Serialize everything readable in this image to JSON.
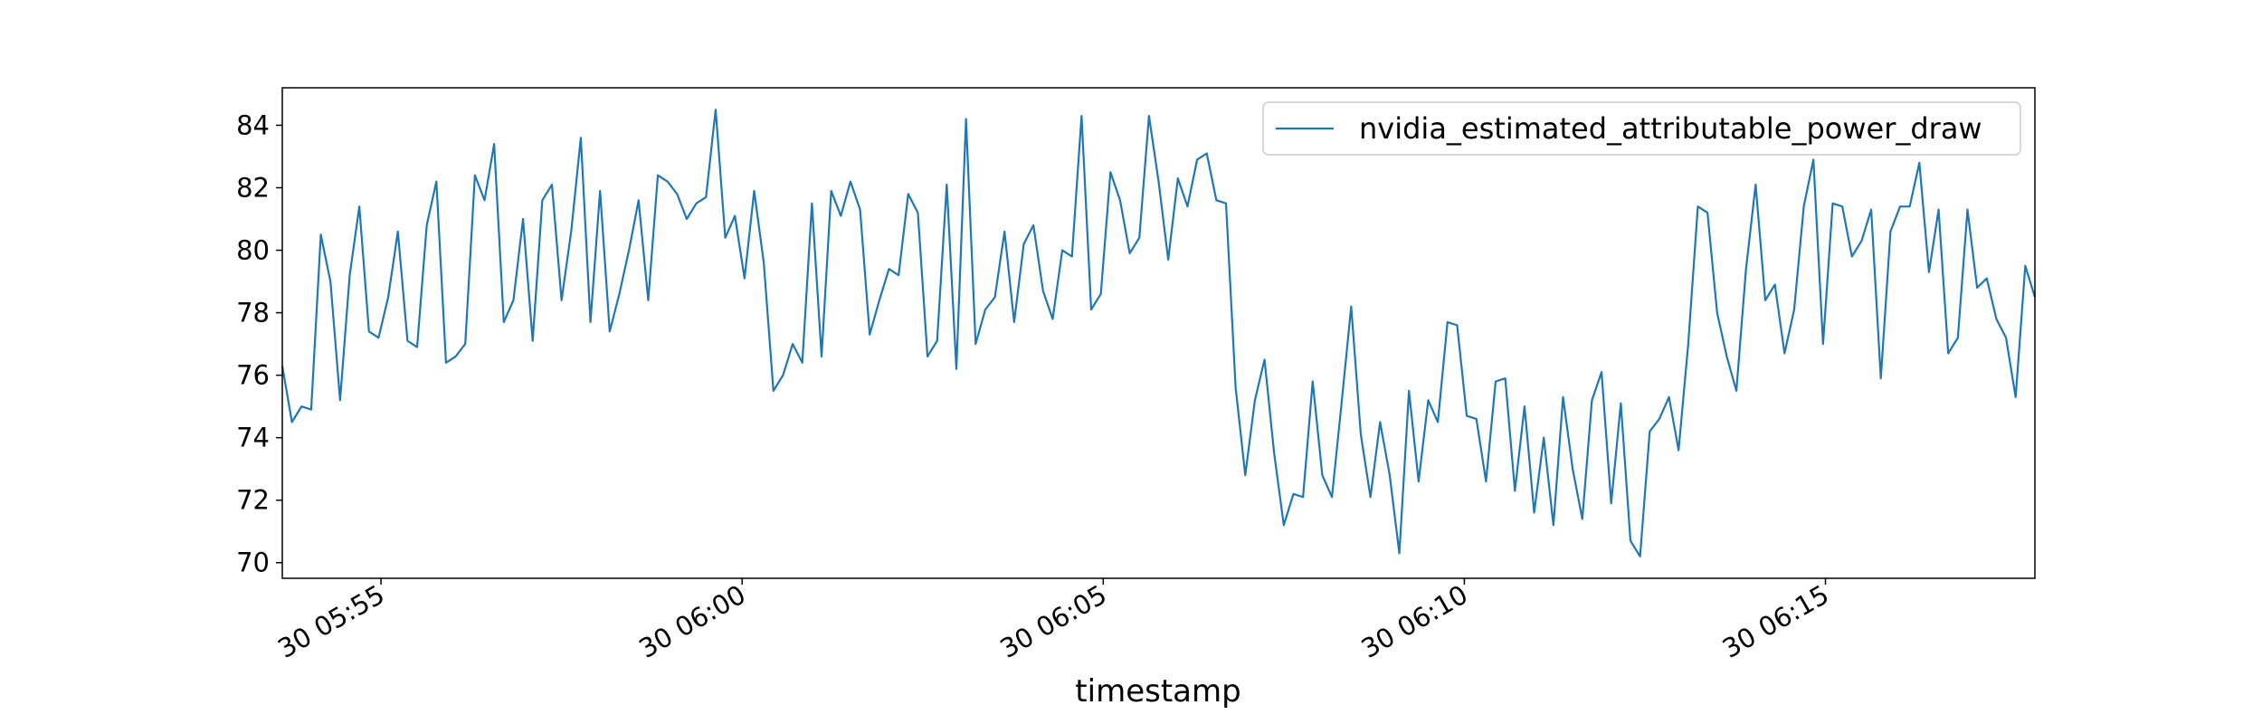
{
  "chart_data": {
    "type": "line",
    "x_label": "timestamp",
    "legend": "upper right",
    "x": [
      "30 05:53:38",
      "30 05:53:46",
      "30 05:53:54",
      "30 05:54:02",
      "30 05:54:10",
      "30 05:54:18",
      "30 05:54:26",
      "30 05:54:34",
      "30 05:54:42",
      "30 05:54:50",
      "30 05:54:58",
      "30 05:55:06",
      "30 05:55:14",
      "30 05:55:22",
      "30 05:55:30",
      "30 05:55:38",
      "30 05:55:46",
      "30 05:55:54",
      "30 05:56:02",
      "30 05:56:10",
      "30 05:56:18",
      "30 05:56:26",
      "30 05:56:34",
      "30 05:56:42",
      "30 05:56:50",
      "30 05:56:58",
      "30 05:57:06",
      "30 05:57:14",
      "30 05:57:22",
      "30 05:57:30",
      "30 05:57:38",
      "30 05:57:46",
      "30 05:57:54",
      "30 05:58:02",
      "30 05:58:10",
      "30 05:58:18",
      "30 05:58:26",
      "30 05:58:34",
      "30 05:58:42",
      "30 05:58:50",
      "30 05:58:58",
      "30 05:59:06",
      "30 05:59:14",
      "30 05:59:22",
      "30 05:59:30",
      "30 05:59:38",
      "30 05:59:46",
      "30 05:59:54",
      "30 06:00:02",
      "30 06:00:10",
      "30 06:00:18",
      "30 06:00:26",
      "30 06:00:34",
      "30 06:00:42",
      "30 06:00:50",
      "30 06:00:58",
      "30 06:01:06",
      "30 06:01:14",
      "30 06:01:22",
      "30 06:01:30",
      "30 06:01:38",
      "30 06:01:46",
      "30 06:01:54",
      "30 06:02:02",
      "30 06:02:10",
      "30 06:02:18",
      "30 06:02:26",
      "30 06:02:34",
      "30 06:02:42",
      "30 06:02:50",
      "30 06:02:58",
      "30 06:03:06",
      "30 06:03:14",
      "30 06:03:22",
      "30 06:03:30",
      "30 06:03:38",
      "30 06:03:46",
      "30 06:03:54",
      "30 06:04:02",
      "30 06:04:10",
      "30 06:04:18",
      "30 06:04:26",
      "30 06:04:34",
      "30 06:04:42",
      "30 06:04:50",
      "30 06:04:58",
      "30 06:05:06",
      "30 06:05:14",
      "30 06:05:22",
      "30 06:05:30",
      "30 06:05:38",
      "30 06:05:46",
      "30 06:05:54",
      "30 06:06:02",
      "30 06:06:10",
      "30 06:06:18",
      "30 06:06:26",
      "30 06:06:34",
      "30 06:06:42",
      "30 06:06:50",
      "30 06:06:58",
      "30 06:07:06",
      "30 06:07:14",
      "30 06:07:22",
      "30 06:07:30",
      "30 06:07:38",
      "30 06:07:46",
      "30 06:07:54",
      "30 06:08:02",
      "30 06:08:10",
      "30 06:08:18",
      "30 06:08:26",
      "30 06:08:34",
      "30 06:08:42",
      "30 06:08:50",
      "30 06:08:58",
      "30 06:09:06",
      "30 06:09:14",
      "30 06:09:22",
      "30 06:09:30",
      "30 06:09:38",
      "30 06:09:46",
      "30 06:09:54",
      "30 06:10:02",
      "30 06:10:10",
      "30 06:10:18",
      "30 06:10:26",
      "30 06:10:34",
      "30 06:10:42",
      "30 06:10:50",
      "30 06:10:58",
      "30 06:11:06",
      "30 06:11:14",
      "30 06:11:22",
      "30 06:11:30",
      "30 06:11:38",
      "30 06:11:46",
      "30 06:11:54",
      "30 06:12:02",
      "30 06:12:10",
      "30 06:12:18",
      "30 06:12:26",
      "30 06:12:34",
      "30 06:12:42",
      "30 06:12:50",
      "30 06:12:58",
      "30 06:13:06",
      "30 06:13:14",
      "30 06:13:22",
      "30 06:13:30",
      "30 06:13:38",
      "30 06:13:46",
      "30 06:13:54",
      "30 06:14:02",
      "30 06:14:10",
      "30 06:14:18",
      "30 06:14:26",
      "30 06:14:34",
      "30 06:14:42",
      "30 06:14:50",
      "30 06:14:58",
      "30 06:15:06",
      "30 06:15:14",
      "30 06:15:22",
      "30 06:15:30",
      "30 06:15:38",
      "30 06:15:46",
      "30 06:15:54",
      "30 06:16:02",
      "30 06:16:10",
      "30 06:16:18",
      "30 06:16:26",
      "30 06:16:34",
      "30 06:16:42",
      "30 06:16:50",
      "30 06:16:58",
      "30 06:17:06",
      "30 06:17:14",
      "30 06:17:22",
      "30 06:17:30",
      "30 06:17:38",
      "30 06:17:46",
      "30 06:17:54"
    ],
    "series": [
      {
        "name": "nvidia_estimated_attributable_power_draw",
        "color": "#1f77b4",
        "values": [
          76.3,
          74.5,
          75.0,
          74.9,
          80.5,
          79.0,
          75.2,
          79.2,
          81.4,
          77.4,
          77.2,
          78.5,
          80.6,
          77.1,
          76.9,
          80.8,
          82.2,
          76.4,
          76.6,
          77.0,
          82.4,
          81.6,
          83.4,
          77.7,
          78.4,
          81.0,
          77.1,
          81.6,
          82.1,
          78.4,
          80.6,
          83.6,
          77.7,
          81.9,
          77.4,
          78.6,
          80.0,
          81.6,
          78.4,
          82.4,
          82.2,
          81.8,
          81.0,
          81.5,
          81.7,
          84.5,
          80.4,
          81.1,
          79.1,
          81.9,
          79.6,
          75.5,
          76.0,
          77.0,
          76.4,
          81.5,
          76.6,
          81.9,
          81.1,
          82.2,
          81.3,
          77.3,
          78.4,
          79.4,
          79.2,
          81.8,
          81.2,
          76.6,
          77.1,
          82.1,
          76.2,
          84.2,
          77.0,
          78.1,
          78.5,
          80.6,
          77.7,
          80.2,
          80.8,
          78.7,
          77.8,
          80.0,
          79.8,
          84.3,
          78.1,
          78.6,
          82.5,
          81.6,
          79.9,
          80.4,
          84.3,
          82.2,
          79.7,
          82.3,
          81.4,
          82.9,
          83.1,
          81.6,
          81.5,
          75.6,
          72.8,
          75.2,
          76.5,
          73.5,
          71.2,
          72.2,
          72.1,
          75.8,
          72.8,
          72.1,
          75.1,
          78.2,
          74.1,
          72.1,
          74.5,
          72.8,
          70.3,
          75.5,
          72.6,
          75.2,
          74.5,
          77.7,
          77.6,
          74.7,
          74.6,
          72.6,
          75.8,
          75.9,
          72.3,
          75.0,
          71.6,
          74.0,
          71.2,
          75.3,
          73.0,
          71.4,
          75.2,
          76.1,
          71.9,
          75.1,
          70.7,
          70.2,
          74.2,
          74.6,
          75.3,
          73.6,
          77.0,
          81.4,
          81.2,
          78.0,
          76.6,
          75.5,
          79.4,
          82.1,
          78.4,
          78.9,
          76.7,
          78.1,
          81.4,
          82.9,
          77.0,
          81.5,
          81.4,
          79.8,
          80.3,
          81.3,
          75.9,
          80.6,
          81.4,
          81.4,
          82.8,
          79.3,
          81.3,
          76.7,
          77.2,
          81.3,
          78.8,
          79.1,
          77.8,
          77.2,
          75.3,
          79.5,
          78.5
        ]
      }
    ],
    "xlim": [
      "30 05:53:38",
      "30 06:17:54"
    ],
    "xticks": [
      {
        "value": "30 05:55:00",
        "label": "30 05:55"
      },
      {
        "value": "30 06:00:00",
        "label": "30 06:00"
      },
      {
        "value": "30 06:05:00",
        "label": "30 06:05"
      },
      {
        "value": "30 06:10:00",
        "label": "30 06:10"
      },
      {
        "value": "30 06:15:00",
        "label": "30 06:15"
      }
    ],
    "ylim": [
      69.5,
      85.2
    ],
    "yticks": [
      70,
      72,
      74,
      76,
      78,
      80,
      82,
      84
    ]
  }
}
